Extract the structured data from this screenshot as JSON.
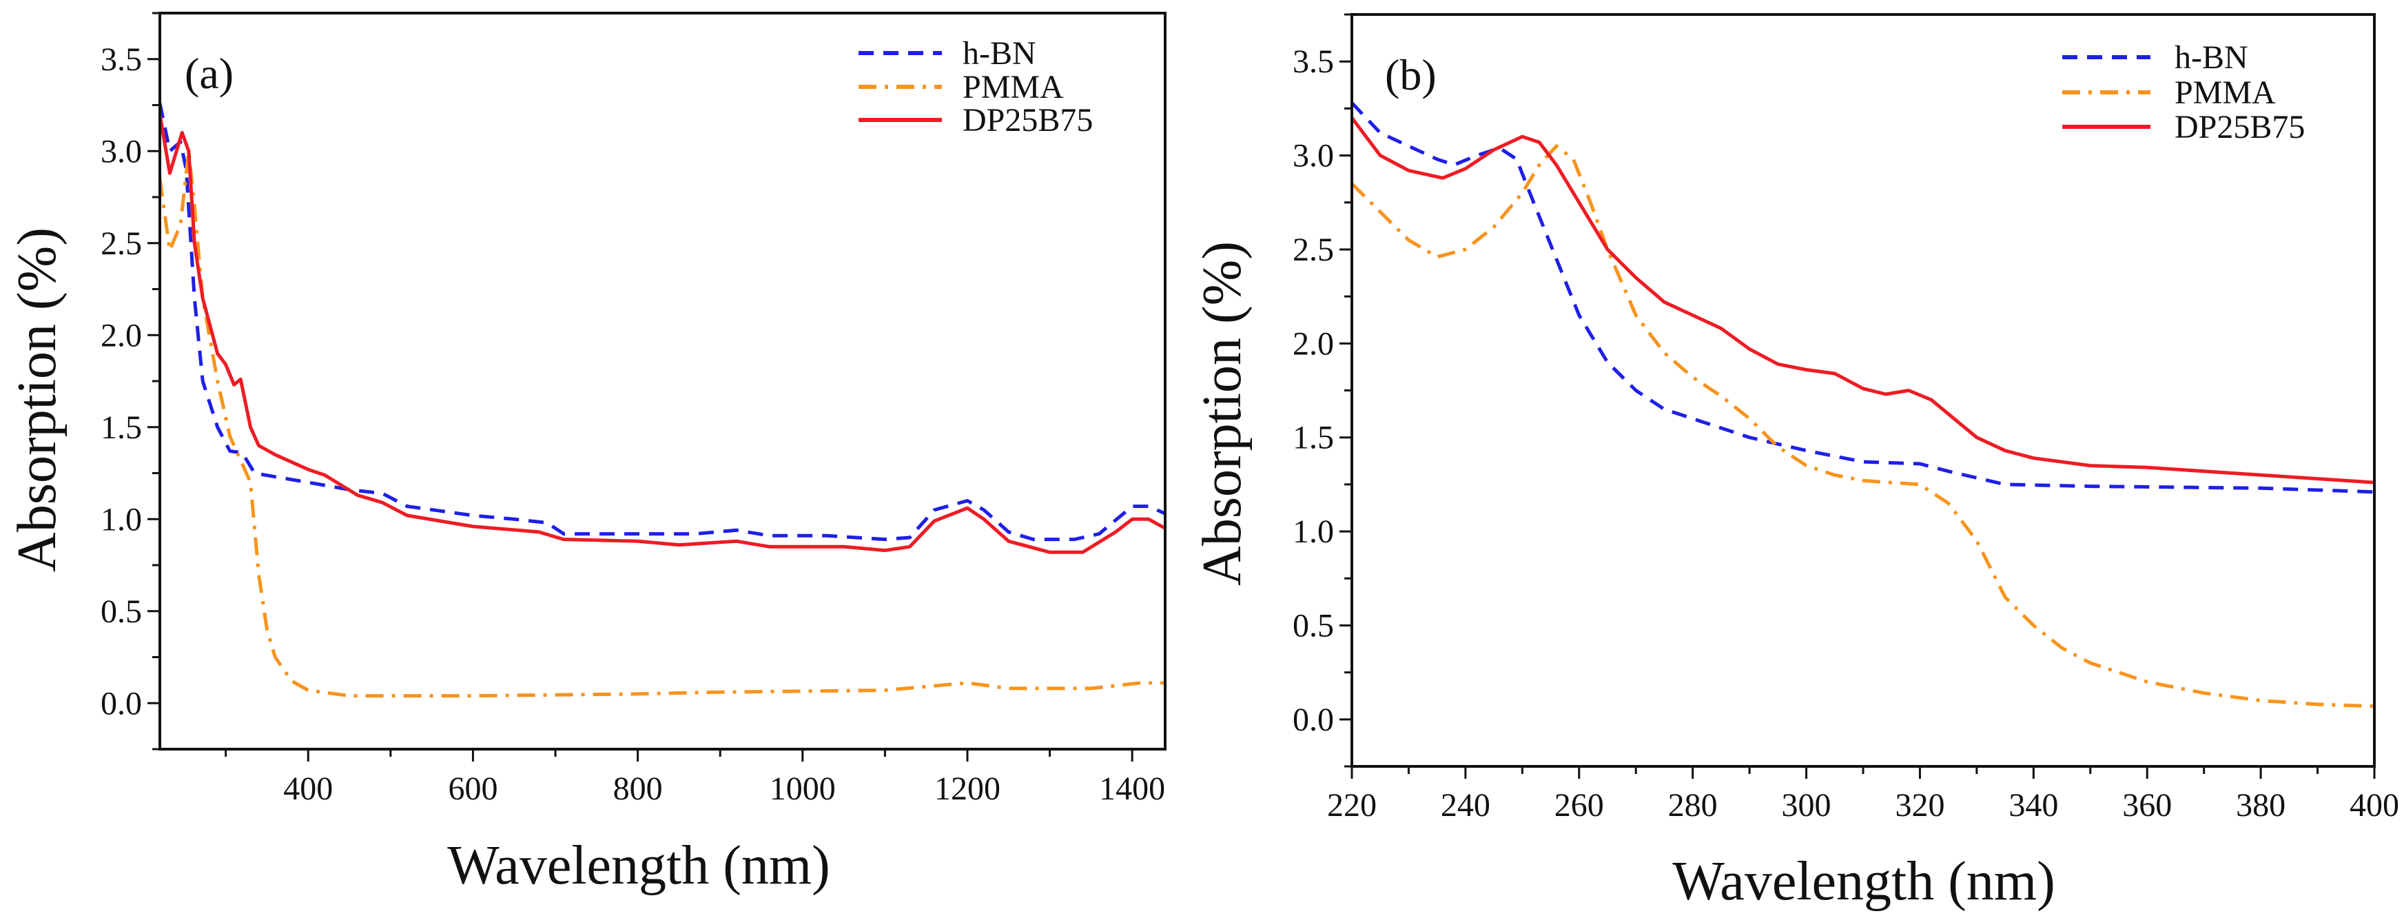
{
  "colors": {
    "h-BN": "#1f1fe6",
    "PMMA": "#f7941d",
    "DP25B75": "#ee1c24",
    "axis": "#111111"
  },
  "chart_data": [
    {
      "type": "line",
      "panel_label": "(a)",
      "xlabel": "Wavelength (nm)",
      "ylabel": "Absorption (%)",
      "xlim": [
        220,
        1440
      ],
      "ylim": [
        -0.25,
        3.75
      ],
      "xticks": [
        400,
        600,
        800,
        1000,
        1200,
        1400
      ],
      "xtick_labels": [
        "400",
        "600",
        "800",
        "1000",
        "1200",
        "1400"
      ],
      "xminor_step": 100,
      "yticks": [
        0,
        0.5,
        1,
        1.5,
        2,
        2.5,
        3,
        3.5
      ],
      "ytick_labels": [
        "0.0",
        "0.5",
        "1.0",
        "1.5",
        "2.0",
        "2.5",
        "3.0",
        "3.5"
      ],
      "yminor_step": 0.25,
      "grid": false,
      "legend_position": "top-right",
      "series": [
        {
          "name": "h-BN",
          "style": "dashed",
          "x": [
            220,
            232,
            245,
            252,
            262,
            272,
            290,
            305,
            320,
            335,
            360,
            400,
            450,
            490,
            520,
            600,
            650,
            690,
            710,
            800,
            870,
            920,
            960,
            1030,
            1100,
            1130,
            1160,
            1200,
            1220,
            1250,
            1280,
            1330,
            1360,
            1400,
            1420,
            1440
          ],
          "y": [
            3.26,
            3.0,
            3.05,
            2.9,
            2.2,
            1.75,
            1.5,
            1.37,
            1.36,
            1.25,
            1.23,
            1.2,
            1.16,
            1.14,
            1.07,
            1.02,
            1.0,
            0.98,
            0.92,
            0.92,
            0.92,
            0.94,
            0.91,
            0.91,
            0.89,
            0.9,
            1.05,
            1.1,
            1.05,
            0.93,
            0.89,
            0.89,
            0.92,
            1.07,
            1.07,
            1.03
          ]
        },
        {
          "name": "PMMA",
          "style": "dash-dot",
          "x": [
            220,
            232,
            245,
            255,
            262,
            272,
            290,
            305,
            320,
            330,
            340,
            350,
            360,
            380,
            400,
            450,
            600,
            800,
            900,
            1100,
            1200,
            1250,
            1350,
            1410,
            1440
          ],
          "y": [
            2.85,
            2.46,
            2.6,
            3.0,
            2.7,
            2.2,
            1.75,
            1.45,
            1.3,
            1.2,
            0.7,
            0.4,
            0.25,
            0.12,
            0.07,
            0.04,
            0.04,
            0.05,
            0.06,
            0.07,
            0.11,
            0.08,
            0.08,
            0.11,
            0.11
          ]
        },
        {
          "name": "DP25B75",
          "style": "solid",
          "x": [
            220,
            232,
            247,
            255,
            262,
            272,
            290,
            300,
            310,
            318,
            330,
            340,
            360,
            400,
            420,
            460,
            490,
            520,
            600,
            680,
            710,
            800,
            850,
            920,
            960,
            1050,
            1100,
            1130,
            1160,
            1200,
            1220,
            1250,
            1300,
            1340,
            1380,
            1400,
            1420,
            1440
          ],
          "y": [
            3.2,
            2.88,
            3.1,
            3.0,
            2.5,
            2.2,
            1.9,
            1.84,
            1.73,
            1.76,
            1.5,
            1.4,
            1.35,
            1.27,
            1.24,
            1.13,
            1.09,
            1.02,
            0.96,
            0.93,
            0.89,
            0.88,
            0.86,
            0.88,
            0.85,
            0.85,
            0.83,
            0.85,
            0.99,
            1.06,
            1.0,
            0.88,
            0.82,
            0.82,
            0.93,
            1.0,
            1.0,
            0.95
          ]
        }
      ]
    },
    {
      "type": "line",
      "panel_label": "(b)",
      "xlabel": "Wavelength (nm)",
      "ylabel": "Absorption (%)",
      "xlim": [
        220,
        400
      ],
      "ylim": [
        -0.25,
        3.75
      ],
      "xticks": [
        220,
        240,
        260,
        280,
        300,
        320,
        340,
        360,
        380,
        400
      ],
      "xtick_labels": [
        "220",
        "240",
        "260",
        "280",
        "300",
        "320",
        "340",
        "360",
        "380",
        "400"
      ],
      "xminor_step": 10,
      "yticks": [
        0,
        0.5,
        1,
        1.5,
        2,
        2.5,
        3,
        3.5
      ],
      "ytick_labels": [
        "0.0",
        "0.5",
        "1.0",
        "1.5",
        "2.0",
        "2.5",
        "3.0",
        "3.5"
      ],
      "yminor_step": 0.25,
      "grid": false,
      "legend_position": "top-right",
      "series": [
        {
          "name": "h-BN",
          "style": "dashed",
          "x": [
            220,
            225,
            230,
            235,
            238,
            242,
            246,
            249,
            252,
            256,
            260,
            265,
            270,
            275,
            280,
            290,
            300,
            310,
            320,
            325,
            335,
            350,
            380,
            400
          ],
          "y": [
            3.28,
            3.12,
            3.05,
            2.98,
            2.95,
            3.0,
            3.04,
            2.98,
            2.75,
            2.45,
            2.15,
            1.9,
            1.75,
            1.65,
            1.6,
            1.5,
            1.43,
            1.37,
            1.36,
            1.32,
            1.25,
            1.24,
            1.23,
            1.21
          ]
        },
        {
          "name": "PMMA",
          "style": "dash-dot",
          "x": [
            220,
            225,
            230,
            235,
            240,
            245,
            250,
            253,
            256,
            259,
            262,
            265,
            270,
            275,
            280,
            285,
            290,
            295,
            300,
            305,
            310,
            320,
            325,
            330,
            335,
            340,
            345,
            350,
            360,
            370,
            380,
            390,
            400
          ],
          "y": [
            2.85,
            2.7,
            2.55,
            2.46,
            2.5,
            2.62,
            2.8,
            2.95,
            3.05,
            2.98,
            2.75,
            2.5,
            2.15,
            1.95,
            1.82,
            1.72,
            1.6,
            1.45,
            1.35,
            1.3,
            1.27,
            1.25,
            1.15,
            0.95,
            0.65,
            0.5,
            0.38,
            0.3,
            0.2,
            0.14,
            0.1,
            0.08,
            0.07
          ]
        },
        {
          "name": "DP25B75",
          "style": "solid",
          "x": [
            220,
            225,
            230,
            236,
            240,
            245,
            250,
            253,
            256,
            260,
            265,
            270,
            275,
            280,
            285,
            290,
            295,
            300,
            305,
            310,
            314,
            318,
            322,
            326,
            330,
            335,
            340,
            350,
            360,
            380,
            400
          ],
          "y": [
            3.2,
            3.0,
            2.92,
            2.88,
            2.93,
            3.03,
            3.1,
            3.07,
            2.95,
            2.75,
            2.5,
            2.35,
            2.22,
            2.15,
            2.08,
            1.97,
            1.89,
            1.86,
            1.84,
            1.76,
            1.73,
            1.75,
            1.7,
            1.6,
            1.5,
            1.43,
            1.39,
            1.35,
            1.34,
            1.3,
            1.26
          ]
        }
      ]
    }
  ]
}
